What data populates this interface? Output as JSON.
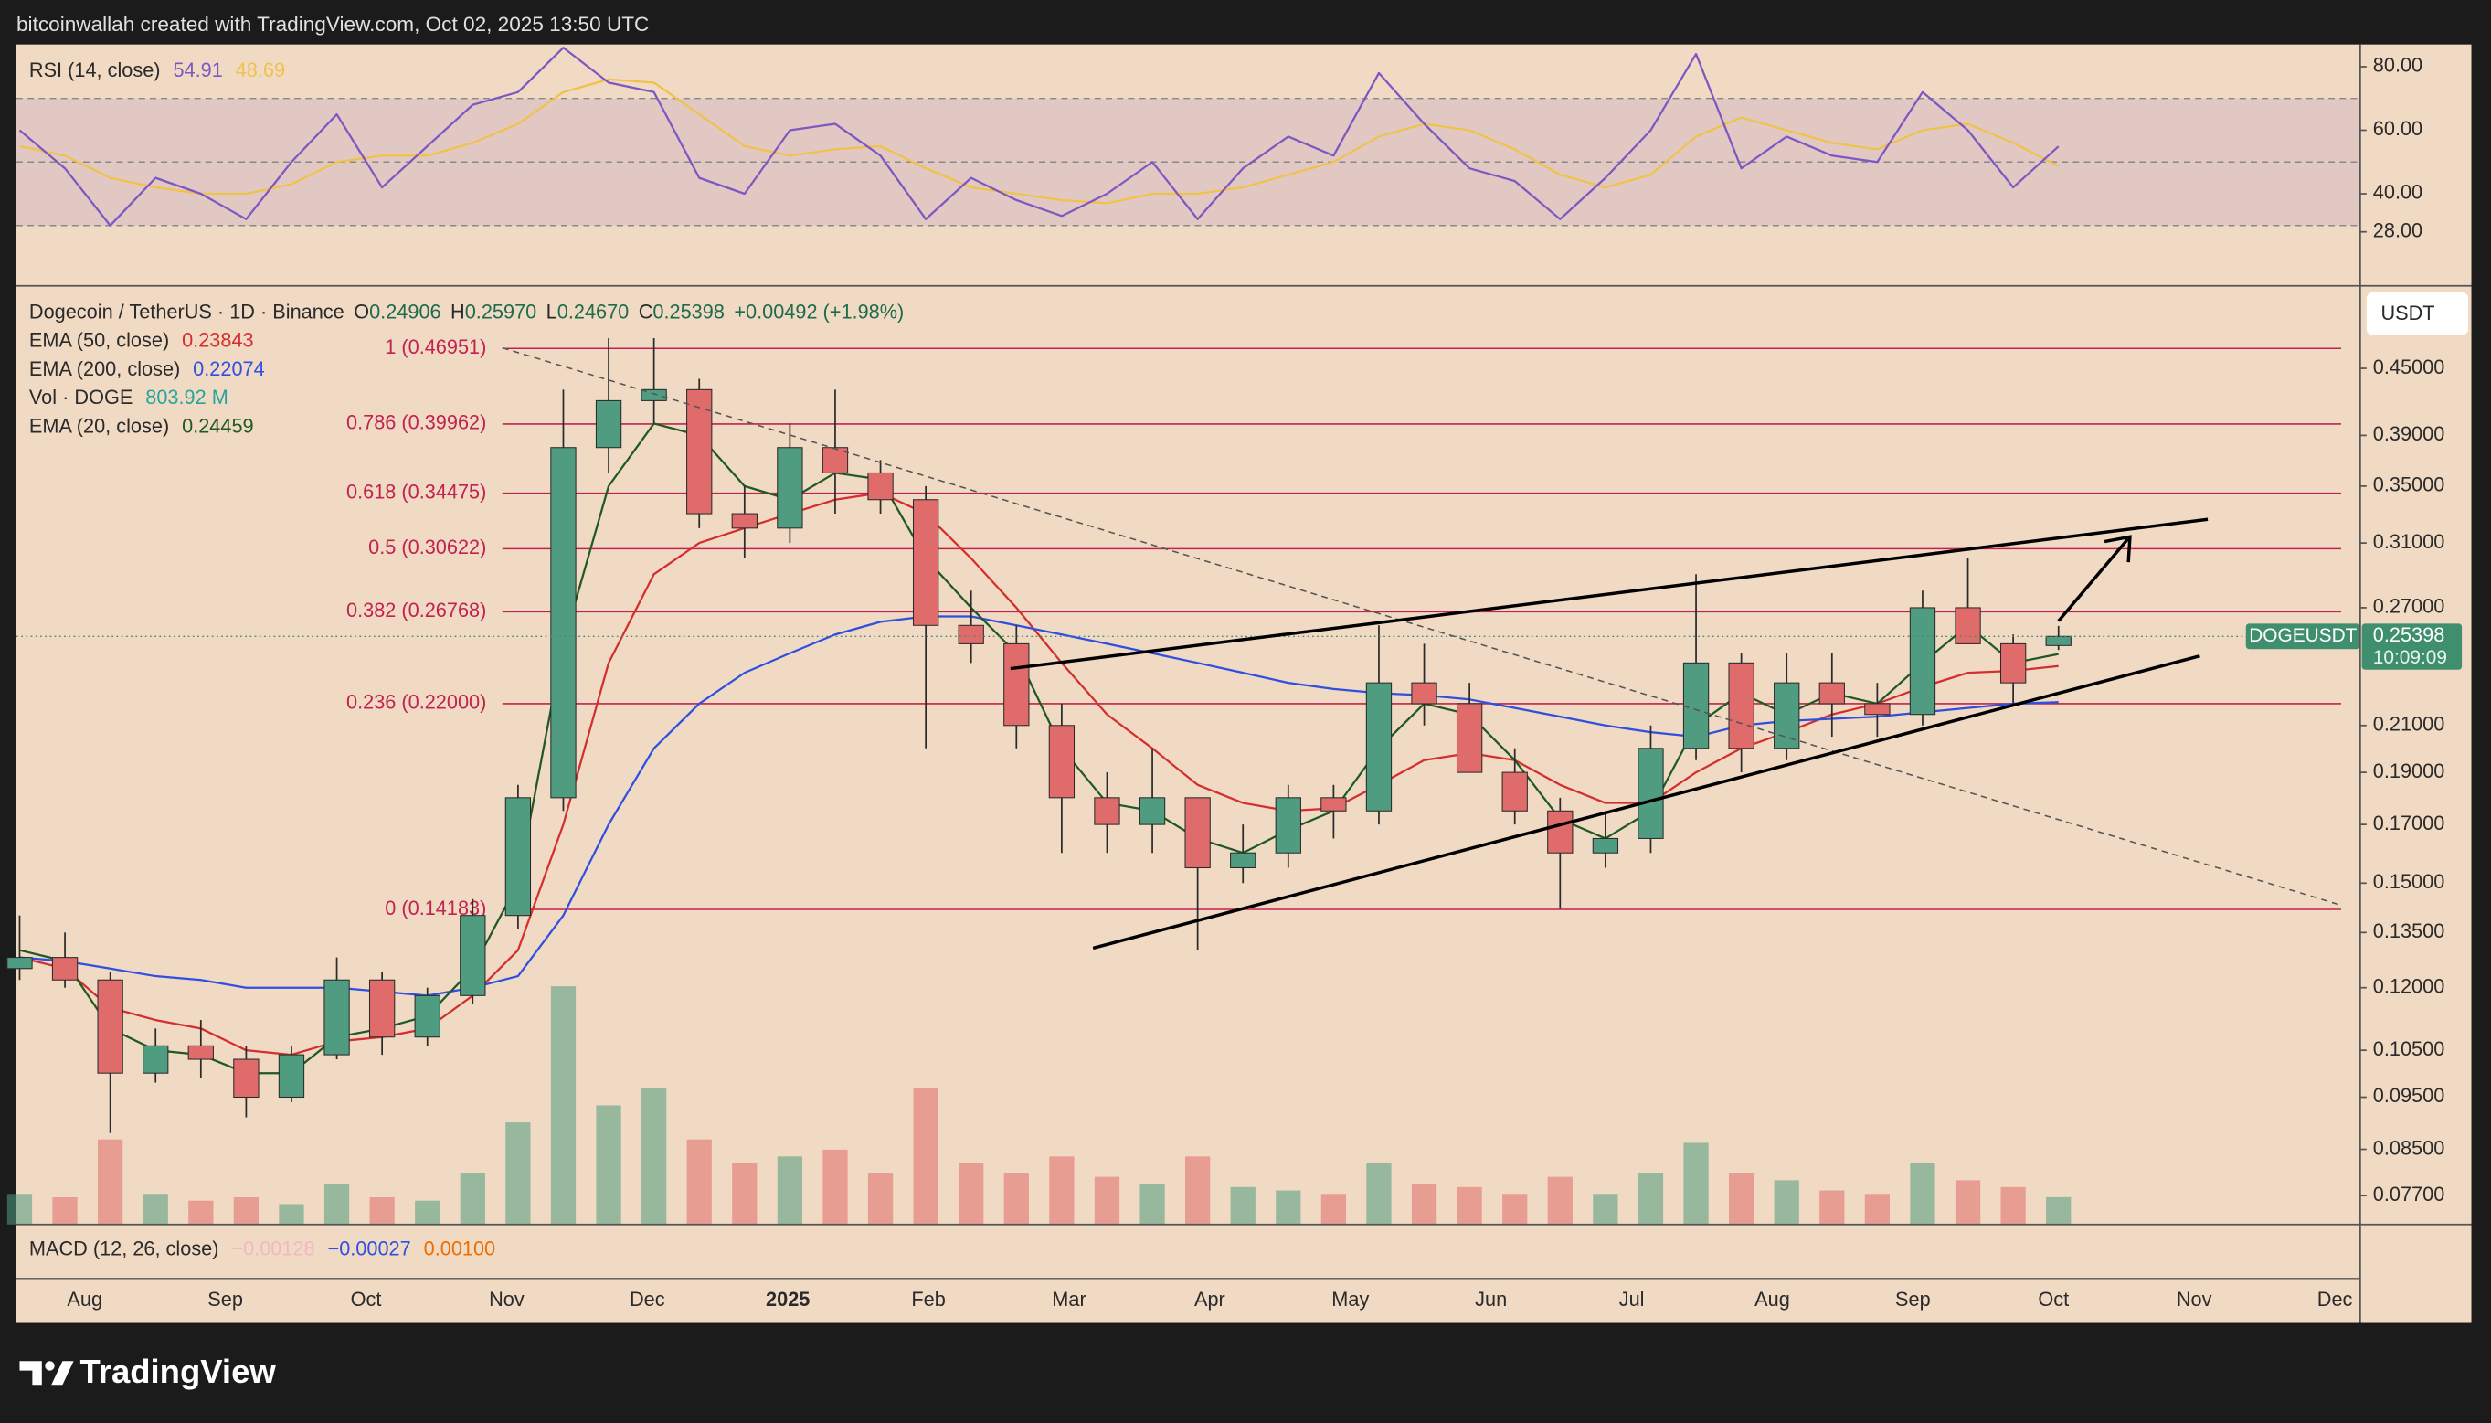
{
  "attribution": "bitcoinwallah created with TradingView.com, Oct 02, 2025 13:50 UTC",
  "brand": "TradingView",
  "chart_data": {
    "type": "candlestick",
    "title": "Dogecoin / TetherUS · 1D · Binance",
    "ohlc_readout": [
      {
        "label": "O",
        "value": "0.24906"
      },
      {
        "label": "H",
        "value": "0.25970"
      },
      {
        "label": "L",
        "value": "0.24670"
      },
      {
        "label": "C",
        "value": "0.25398"
      }
    ],
    "change": "+0.00492 (+1.98%)",
    "time_axis_labels": [
      "Aug",
      "Sep",
      "Oct",
      "Nov",
      "Dec",
      "2025",
      "Feb",
      "Mar",
      "Apr",
      "May",
      "Jun",
      "Jul",
      "Aug",
      "Sep",
      "Oct",
      "Nov",
      "Dec"
    ],
    "open": [
      0.125,
      0.128,
      0.122,
      0.1,
      0.106,
      0.103,
      0.095,
      0.104,
      0.122,
      0.108,
      0.118,
      0.14,
      0.18,
      0.38,
      0.42,
      0.43,
      0.33,
      0.32,
      0.38,
      0.36,
      0.34,
      0.26,
      0.25,
      0.21,
      0.18,
      0.17,
      0.18,
      0.155,
      0.16,
      0.18,
      0.175,
      0.23,
      0.22,
      0.19,
      0.175,
      0.16,
      0.165,
      0.2,
      0.24,
      0.2,
      0.23,
      0.22,
      0.215,
      0.27,
      0.25,
      0.24906
    ],
    "high": [
      0.14,
      0.135,
      0.124,
      0.11,
      0.112,
      0.106,
      0.106,
      0.128,
      0.124,
      0.12,
      0.145,
      0.185,
      0.43,
      0.48,
      0.48,
      0.44,
      0.35,
      0.4,
      0.43,
      0.37,
      0.35,
      0.28,
      0.26,
      0.22,
      0.19,
      0.2,
      0.18,
      0.17,
      0.185,
      0.185,
      0.26,
      0.25,
      0.23,
      0.2,
      0.18,
      0.175,
      0.21,
      0.29,
      0.245,
      0.245,
      0.245,
      0.23,
      0.28,
      0.3,
      0.255,
      0.2597
    ],
    "low": [
      0.122,
      0.12,
      0.088,
      0.098,
      0.099,
      0.091,
      0.094,
      0.103,
      0.104,
      0.106,
      0.116,
      0.136,
      0.175,
      0.36,
      0.4,
      0.32,
      0.3,
      0.31,
      0.33,
      0.33,
      0.2,
      0.24,
      0.2,
      0.16,
      0.16,
      0.16,
      0.13,
      0.15,
      0.155,
      0.165,
      0.17,
      0.21,
      0.19,
      0.17,
      0.142,
      0.155,
      0.16,
      0.195,
      0.19,
      0.195,
      0.205,
      0.205,
      0.21,
      0.25,
      0.22,
      0.2467
    ],
    "close": [
      0.128,
      0.122,
      0.1,
      0.106,
      0.103,
      0.095,
      0.104,
      0.122,
      0.108,
      0.118,
      0.14,
      0.18,
      0.38,
      0.42,
      0.43,
      0.33,
      0.32,
      0.38,
      0.36,
      0.34,
      0.26,
      0.25,
      0.21,
      0.18,
      0.17,
      0.18,
      0.155,
      0.16,
      0.18,
      0.175,
      0.23,
      0.22,
      0.19,
      0.175,
      0.16,
      0.165,
      0.2,
      0.24,
      0.2,
      0.23,
      0.22,
      0.215,
      0.27,
      0.25,
      0.23,
      0.25398
    ],
    "volume": {
      "name": "Vol · DOGE",
      "readout": "803.92 M",
      "color": "#26a69a",
      "values": [
        900,
        800,
        2500,
        900,
        700,
        800,
        600,
        1200,
        800,
        700,
        1500,
        3000,
        7000,
        3500,
        4000,
        2500,
        1800,
        2000,
        2200,
        1500,
        4000,
        1800,
        1500,
        2000,
        1400,
        1200,
        2000,
        1100,
        1000,
        900,
        1800,
        1200,
        1100,
        900,
        1400,
        900,
        1500,
        2400,
        1500,
        1300,
        1000,
        900,
        1800,
        1300,
        1100,
        803.92
      ]
    },
    "up_color": "#4f9c80",
    "down_color": "#e06b6b",
    "series": [
      {
        "name": "EMA (50, close)",
        "readout": "0.23843",
        "color": "#d32f2f",
        "values": [
          0.128,
          0.125,
          0.115,
          0.112,
          0.11,
          0.105,
          0.104,
          0.107,
          0.108,
          0.11,
          0.118,
          0.13,
          0.17,
          0.24,
          0.29,
          0.31,
          0.32,
          0.33,
          0.34,
          0.345,
          0.33,
          0.3,
          0.27,
          0.24,
          0.215,
          0.2,
          0.185,
          0.178,
          0.175,
          0.176,
          0.185,
          0.195,
          0.198,
          0.195,
          0.185,
          0.178,
          0.178,
          0.19,
          0.2,
          0.207,
          0.215,
          0.22,
          0.228,
          0.235,
          0.236,
          0.23843
        ]
      },
      {
        "name": "EMA (200, close)",
        "readout": "0.22074",
        "color": "#2f4fe0",
        "values": [
          0.128,
          0.127,
          0.125,
          0.123,
          0.122,
          0.12,
          0.12,
          0.12,
          0.119,
          0.118,
          0.12,
          0.123,
          0.14,
          0.17,
          0.2,
          0.22,
          0.235,
          0.245,
          0.255,
          0.262,
          0.265,
          0.265,
          0.26,
          0.255,
          0.25,
          0.245,
          0.24,
          0.235,
          0.23,
          0.227,
          0.225,
          0.224,
          0.222,
          0.218,
          0.214,
          0.21,
          0.207,
          0.205,
          0.21,
          0.212,
          0.213,
          0.214,
          0.216,
          0.218,
          0.22,
          0.22074
        ]
      },
      {
        "name": "EMA (20, close)",
        "readout": "0.24459",
        "color": "#1f5a22",
        "values": [
          0.13,
          0.127,
          0.11,
          0.105,
          0.104,
          0.1,
          0.1,
          0.108,
          0.11,
          0.113,
          0.125,
          0.15,
          0.25,
          0.35,
          0.4,
          0.39,
          0.35,
          0.34,
          0.36,
          0.355,
          0.3,
          0.27,
          0.245,
          0.2,
          0.178,
          0.175,
          0.165,
          0.16,
          0.168,
          0.175,
          0.2,
          0.22,
          0.215,
          0.195,
          0.172,
          0.165,
          0.175,
          0.21,
          0.225,
          0.215,
          0.225,
          0.22,
          0.24,
          0.26,
          0.24,
          0.24459
        ]
      }
    ],
    "legend_order": [
      0,
      1,
      "volume",
      2
    ],
    "ylim": [
      0.0724,
      0.5366
    ],
    "log_scale": true,
    "yticks": [
      {
        "value": 0.45,
        "label": "0.45000"
      },
      {
        "value": 0.39,
        "label": "0.39000"
      },
      {
        "value": 0.35,
        "label": "0.35000"
      },
      {
        "value": 0.31,
        "label": "0.31000"
      },
      {
        "value": 0.27,
        "label": "0.27000"
      },
      {
        "value": 0.21,
        "label": "0.21000"
      },
      {
        "value": 0.19,
        "label": "0.19000"
      },
      {
        "value": 0.17,
        "label": "0.17000"
      },
      {
        "value": 0.15,
        "label": "0.15000"
      },
      {
        "value": 0.135,
        "label": "0.13500"
      },
      {
        "value": 0.12,
        "label": "0.12000"
      },
      {
        "value": 0.105,
        "label": "0.10500"
      },
      {
        "value": 0.095,
        "label": "0.09500"
      },
      {
        "value": 0.085,
        "label": "0.08500"
      },
      {
        "value": 0.077,
        "label": "0.07700"
      }
    ],
    "currency_button": "USDT",
    "fib_color": "#c2224f",
    "fib_levels": [
      {
        "label": "1 (0.46951)",
        "value": 0.46951
      },
      {
        "label": "0.786 (0.39962)",
        "value": 0.39962
      },
      {
        "label": "0.618 (0.34475)",
        "value": 0.34475
      },
      {
        "label": "0.5 (0.30622)",
        "value": 0.30622
      },
      {
        "label": "0.382 (0.26768)",
        "value": 0.26768
      },
      {
        "label": "0.236 (0.22000)",
        "value": 0.22
      },
      {
        "label": "0 (0.14183)",
        "value": 0.14183
      }
    ],
    "price_badge": {
      "symbol": "DOGEUSDT",
      "price": "0.25398",
      "countdown": "10:09:09",
      "color": "#3f8f6e"
    },
    "rsi": {
      "name": "RSI (14, close)",
      "readouts": [
        "54.91",
        "48.69"
      ],
      "color": "#7e57c2",
      "ma_color": "#f0c24a",
      "values": [
        60,
        48,
        30,
        45,
        40,
        32,
        50,
        65,
        42,
        55,
        68,
        72,
        86,
        75,
        72,
        45,
        40,
        60,
        62,
        52,
        32,
        45,
        38,
        33,
        40,
        50,
        32,
        48,
        58,
        52,
        78,
        62,
        48,
        44,
        32,
        45,
        60,
        84,
        48,
        58,
        52,
        50,
        72,
        60,
        42,
        54.91
      ],
      "ma_values": [
        55,
        52,
        45,
        42,
        40,
        40,
        43,
        50,
        52,
        52,
        56,
        62,
        72,
        76,
        75,
        65,
        55,
        52,
        54,
        55,
        48,
        42,
        40,
        38,
        37,
        40,
        40,
        42,
        46,
        50,
        58,
        62,
        60,
        54,
        46,
        42,
        46,
        58,
        64,
        60,
        56,
        54,
        60,
        62,
        56,
        48.69
      ],
      "ylim": [
        11,
        87
      ],
      "yticks": [
        {
          "value": 80,
          "label": "80.00"
        },
        {
          "value": 60,
          "label": "60.00"
        },
        {
          "value": 40,
          "label": "40.00"
        },
        {
          "value": 28,
          "label": "28.00"
        }
      ],
      "levels": [
        70,
        50,
        30
      ]
    },
    "macd": {
      "name": "MACD (12, 26, close)",
      "readouts": [
        {
          "text": "−0.00128",
          "color": "#f3b7c3"
        },
        {
          "text": "−0.00027",
          "color": "#2f4fe0"
        },
        {
          "text": "0.00100",
          "color": "#ef6c00"
        }
      ]
    }
  }
}
